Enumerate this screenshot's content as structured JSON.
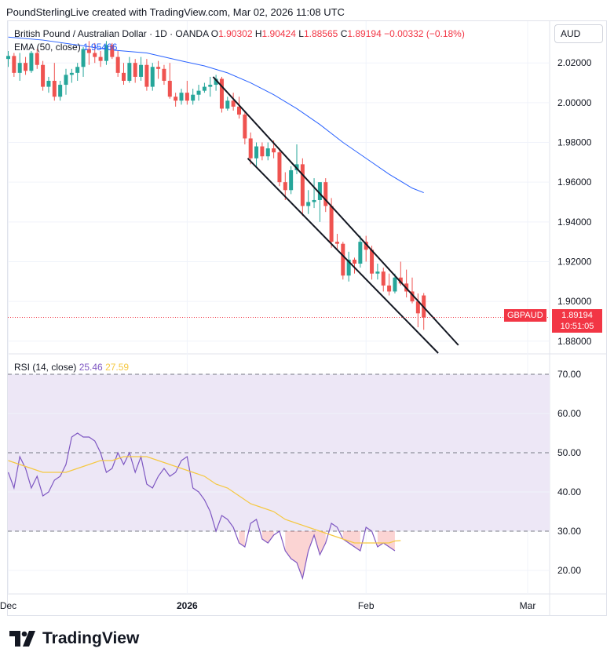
{
  "header": {
    "text": "PoundSterlingLive created with TradingView.com, Mar 02, 2026 11:08 UTC"
  },
  "symbol": {
    "name": "British Pound / Australian Dollar · 1D · OANDA",
    "o_label": "O",
    "o": "1.90302",
    "h_label": "H",
    "h": "1.90424",
    "l_label": "L",
    "l": "1.88565",
    "c_label": "C",
    "c": "1.89194",
    "change": "−0.00332 (−0.18%)"
  },
  "ema_legend": {
    "label": "EMA (50, close)",
    "value": "1.95466"
  },
  "rsi_legend": {
    "label": "RSI (14, close)",
    "rsi": "25.46",
    "ma": "27.59"
  },
  "currency_button": "AUD",
  "price_tag": {
    "symbol": "GBPAUD",
    "price": "1.89194",
    "countdown": "10:51:05"
  },
  "brand": "TradingView",
  "colors": {
    "up": "#26a69a",
    "down": "#ef5350",
    "ema": "#2962ff",
    "rsi": "#7e57c2",
    "rsi_ma": "#f5c842",
    "band": "#ede7f6"
  },
  "chart_data": [
    {
      "type": "candlestick",
      "title": "British Pound / Australian Dollar · 1D · OANDA",
      "ylim": [
        1.874,
        2.041
      ],
      "y_ticks": [
        2.02,
        2.0,
        1.98,
        1.96,
        1.94,
        1.92,
        1.9,
        1.88
      ],
      "y_tick_labels": [
        "2.02000",
        "2.00000",
        "1.98000",
        "1.96000",
        "1.94000",
        "1.92000",
        "1.90000",
        "1.88000"
      ],
      "x_ticks": [
        {
          "label": "Dec",
          "x": 0
        },
        {
          "label": "2026",
          "x": 31
        },
        {
          "label": "Feb",
          "x": 62
        },
        {
          "label": "Mar",
          "x": 90
        }
      ],
      "x_range": [
        0,
        115
      ],
      "candles": [
        {
          "x": 0,
          "o": 2.022,
          "h": 2.026,
          "l": 2.018,
          "c": 2.0235
        },
        {
          "x": 1,
          "o": 2.0235,
          "h": 2.025,
          "l": 2.013,
          "c": 2.015
        },
        {
          "x": 2,
          "o": 2.015,
          "h": 2.025,
          "l": 2.011,
          "c": 2.02
        },
        {
          "x": 3,
          "o": 2.02,
          "h": 2.023,
          "l": 2.014,
          "c": 2.016
        },
        {
          "x": 4,
          "o": 2.016,
          "h": 2.026,
          "l": 2.015,
          "c": 2.025
        },
        {
          "x": 5,
          "o": 2.025,
          "h": 2.027,
          "l": 2.017,
          "c": 2.019
        },
        {
          "x": 6,
          "o": 2.019,
          "h": 2.021,
          "l": 2.006,
          "c": 2.008
        },
        {
          "x": 7,
          "o": 2.008,
          "h": 2.013,
          "l": 2.005,
          "c": 2.011
        },
        {
          "x": 8,
          "o": 2.011,
          "h": 2.02,
          "l": 2.001,
          "c": 2.003
        },
        {
          "x": 9,
          "o": 2.003,
          "h": 2.011,
          "l": 2.001,
          "c": 2.009
        },
        {
          "x": 10,
          "o": 2.009,
          "h": 2.017,
          "l": 2.004,
          "c": 2.014
        },
        {
          "x": 11,
          "o": 2.014,
          "h": 2.017,
          "l": 2.01,
          "c": 2.015
        },
        {
          "x": 12,
          "o": 2.015,
          "h": 2.02,
          "l": 2.011,
          "c": 2.018
        },
        {
          "x": 13,
          "o": 2.018,
          "h": 2.028,
          "l": 2.013,
          "c": 2.027
        },
        {
          "x": 14,
          "o": 2.027,
          "h": 2.031,
          "l": 2.019,
          "c": 2.025
        },
        {
          "x": 15,
          "o": 2.025,
          "h": 2.03,
          "l": 2.02,
          "c": 2.023
        },
        {
          "x": 16,
          "o": 2.023,
          "h": 2.026,
          "l": 2.018,
          "c": 2.021
        },
        {
          "x": 17,
          "o": 2.021,
          "h": 2.031,
          "l": 2.019,
          "c": 2.029
        },
        {
          "x": 18,
          "o": 2.029,
          "h": 2.03,
          "l": 2.022,
          "c": 2.023
        },
        {
          "x": 19,
          "o": 2.023,
          "h": 2.026,
          "l": 2.013,
          "c": 2.015
        },
        {
          "x": 20,
          "o": 2.015,
          "h": 2.02,
          "l": 2.009,
          "c": 2.011
        },
        {
          "x": 21,
          "o": 2.011,
          "h": 2.023,
          "l": 2.01,
          "c": 2.02
        },
        {
          "x": 22,
          "o": 2.02,
          "h": 2.022,
          "l": 2.01,
          "c": 2.013
        },
        {
          "x": 23,
          "o": 2.013,
          "h": 2.023,
          "l": 2.011,
          "c": 2.019
        },
        {
          "x": 24,
          "o": 2.019,
          "h": 2.022,
          "l": 2.006,
          "c": 2.008
        },
        {
          "x": 25,
          "o": 2.008,
          "h": 2.02,
          "l": 2.006,
          "c": 2.018
        },
        {
          "x": 26,
          "o": 2.018,
          "h": 2.021,
          "l": 2.012,
          "c": 2.017
        },
        {
          "x": 27,
          "o": 2.017,
          "h": 2.019,
          "l": 2.009,
          "c": 2.011
        },
        {
          "x": 28,
          "o": 2.011,
          "h": 2.02,
          "l": 2.002,
          "c": 2.003
        },
        {
          "x": 29,
          "o": 2.003,
          "h": 2.005,
          "l": 1.998,
          "c": 2.001
        },
        {
          "x": 30,
          "o": 2.001,
          "h": 2.007,
          "l": 1.999,
          "c": 2.005
        },
        {
          "x": 31,
          "o": 2.005,
          "h": 2.011,
          "l": 1.999,
          "c": 2.001
        },
        {
          "x": 32,
          "o": 2.001,
          "h": 2.007,
          "l": 1.999,
          "c": 2.004
        },
        {
          "x": 33,
          "o": 2.004,
          "h": 2.009,
          "l": 2.001,
          "c": 2.006
        },
        {
          "x": 34,
          "o": 2.006,
          "h": 2.01,
          "l": 2.005,
          "c": 2.008
        },
        {
          "x": 35,
          "o": 2.008,
          "h": 2.013,
          "l": 2.003,
          "c": 2.009
        },
        {
          "x": 36,
          "o": 2.009,
          "h": 2.014,
          "l": 2.006,
          "c": 2.012
        },
        {
          "x": 37,
          "o": 2.012,
          "h": 2.013,
          "l": 1.995,
          "c": 1.997
        },
        {
          "x": 38,
          "o": 1.997,
          "h": 2.003,
          "l": 1.996,
          "c": 2.001
        },
        {
          "x": 39,
          "o": 2.001,
          "h": 2.005,
          "l": 1.996,
          "c": 1.998
        },
        {
          "x": 40,
          "o": 1.998,
          "h": 2.003,
          "l": 1.992,
          "c": 1.994
        },
        {
          "x": 41,
          "o": 1.994,
          "h": 1.996,
          "l": 1.979,
          "c": 1.982
        },
        {
          "x": 42,
          "o": 1.982,
          "h": 1.985,
          "l": 1.969,
          "c": 1.972
        },
        {
          "x": 43,
          "o": 1.972,
          "h": 1.98,
          "l": 1.968,
          "c": 1.978
        },
        {
          "x": 44,
          "o": 1.978,
          "h": 1.98,
          "l": 1.971,
          "c": 1.973
        },
        {
          "x": 45,
          "o": 1.973,
          "h": 1.98,
          "l": 1.971,
          "c": 1.977
        },
        {
          "x": 46,
          "o": 1.977,
          "h": 1.981,
          "l": 1.972,
          "c": 1.975
        },
        {
          "x": 47,
          "o": 1.975,
          "h": 1.977,
          "l": 1.958,
          "c": 1.96
        },
        {
          "x": 48,
          "o": 1.96,
          "h": 1.965,
          "l": 1.951,
          "c": 1.956
        },
        {
          "x": 49,
          "o": 1.956,
          "h": 1.968,
          "l": 1.954,
          "c": 1.966
        },
        {
          "x": 50,
          "o": 1.966,
          "h": 1.979,
          "l": 1.964,
          "c": 1.969
        },
        {
          "x": 51,
          "o": 1.969,
          "h": 1.972,
          "l": 1.943,
          "c": 1.948
        },
        {
          "x": 52,
          "o": 1.948,
          "h": 1.956,
          "l": 1.944,
          "c": 1.95
        },
        {
          "x": 53,
          "o": 1.95,
          "h": 1.962,
          "l": 1.947,
          "c": 1.951
        },
        {
          "x": 54,
          "o": 1.951,
          "h": 1.96,
          "l": 1.94,
          "c": 1.96
        },
        {
          "x": 55,
          "o": 1.96,
          "h": 1.962,
          "l": 1.945,
          "c": 1.948
        },
        {
          "x": 56,
          "o": 1.948,
          "h": 1.952,
          "l": 1.927,
          "c": 1.93
        },
        {
          "x": 57,
          "o": 1.93,
          "h": 1.934,
          "l": 1.926,
          "c": 1.929
        },
        {
          "x": 58,
          "o": 1.929,
          "h": 1.93,
          "l": 1.911,
          "c": 1.913
        },
        {
          "x": 59,
          "o": 1.913,
          "h": 1.925,
          "l": 1.91,
          "c": 1.921
        },
        {
          "x": 60,
          "o": 1.921,
          "h": 1.922,
          "l": 1.914,
          "c": 1.919
        },
        {
          "x": 61,
          "o": 1.919,
          "h": 1.933,
          "l": 1.917,
          "c": 1.93
        },
        {
          "x": 62,
          "o": 1.93,
          "h": 1.933,
          "l": 1.92,
          "c": 1.926
        },
        {
          "x": 63,
          "o": 1.926,
          "h": 1.928,
          "l": 1.911,
          "c": 1.914
        },
        {
          "x": 64,
          "o": 1.914,
          "h": 1.919,
          "l": 1.911,
          "c": 1.915
        },
        {
          "x": 65,
          "o": 1.915,
          "h": 1.917,
          "l": 1.905,
          "c": 1.908
        },
        {
          "x": 66,
          "o": 1.908,
          "h": 1.914,
          "l": 1.903,
          "c": 1.905
        },
        {
          "x": 67,
          "o": 1.905,
          "h": 1.914,
          "l": 1.904,
          "c": 1.912
        },
        {
          "x": 68,
          "o": 1.912,
          "h": 1.92,
          "l": 1.908,
          "c": 1.909
        },
        {
          "x": 69,
          "o": 1.909,
          "h": 1.916,
          "l": 1.902,
          "c": 1.905
        },
        {
          "x": 70,
          "o": 1.905,
          "h": 1.912,
          "l": 1.899,
          "c": 1.9
        },
        {
          "x": 71,
          "o": 1.9,
          "h": 1.904,
          "l": 1.887,
          "c": 1.894
        },
        {
          "x": 72,
          "o": 1.903,
          "h": 1.9042,
          "l": 1.8857,
          "c": 1.8919
        }
      ],
      "ema_50": [
        {
          "x": 0,
          "y": 2.033
        },
        {
          "x": 6,
          "y": 2.0315
        },
        {
          "x": 12,
          "y": 2.029
        },
        {
          "x": 18,
          "y": 2.0265
        },
        {
          "x": 24,
          "y": 2.025
        },
        {
          "x": 30,
          "y": 2.021
        },
        {
          "x": 34,
          "y": 2.0185
        },
        {
          "x": 38,
          "y": 2.015
        },
        {
          "x": 42,
          "y": 2.01
        },
        {
          "x": 46,
          "y": 2.004
        },
        {
          "x": 50,
          "y": 1.997
        },
        {
          "x": 54,
          "y": 1.989
        },
        {
          "x": 58,
          "y": 1.98
        },
        {
          "x": 62,
          "y": 1.972
        },
        {
          "x": 66,
          "y": 1.964
        },
        {
          "x": 70,
          "y": 1.957
        },
        {
          "x": 72,
          "y": 1.9547
        }
      ],
      "channel": [
        {
          "name": "upper",
          "from": {
            "x": 35.5,
            "y": 2.013
          },
          "to": {
            "x": 78,
            "y": 1.878
          }
        },
        {
          "name": "lower",
          "from": {
            "x": 41.5,
            "y": 1.972
          },
          "to": {
            "x": 74.5,
            "y": 1.8738
          }
        }
      ],
      "last_price": 1.89194
    },
    {
      "type": "line",
      "title": "RSI (14, close)",
      "ylim": [
        14,
        75
      ],
      "y_ticks": [
        70,
        60,
        50,
        40,
        30,
        20
      ],
      "y_tick_labels": [
        "70.00",
        "60.00",
        "50.00",
        "40.00",
        "30.00",
        "20.00"
      ],
      "band": [
        30,
        70
      ],
      "levels": [
        70,
        50,
        30
      ],
      "series": [
        {
          "name": "RSI",
          "values": [
            45,
            41,
            49,
            46,
            41,
            44,
            39,
            40,
            43,
            44,
            47,
            54,
            55,
            54,
            54,
            53,
            50,
            45,
            46,
            50,
            47,
            50,
            45,
            49,
            42,
            41,
            44,
            46,
            44,
            45,
            48,
            49,
            41,
            40,
            38,
            35,
            30,
            34,
            33,
            31,
            27,
            26,
            32,
            33,
            28,
            27,
            29,
            30,
            25,
            23,
            22,
            18,
            25,
            29,
            24,
            27,
            32,
            31,
            28,
            27,
            26,
            25,
            31,
            30,
            26,
            27,
            26,
            25
          ],
          "x": [
            0,
            1,
            2,
            3,
            4,
            5,
            6,
            7,
            8,
            9,
            10,
            11,
            12,
            13,
            14,
            15,
            16,
            17,
            18,
            19,
            20,
            21,
            22,
            23,
            24,
            25,
            26,
            27,
            28,
            29,
            30,
            31,
            32,
            33,
            34,
            35,
            36,
            37,
            38,
            39,
            40,
            41,
            42,
            43,
            44,
            45,
            46,
            47,
            48,
            49,
            50,
            51,
            52,
            53,
            54,
            55,
            56,
            57,
            58,
            59,
            60,
            61,
            62,
            63,
            64,
            65,
            66,
            67
          ]
        },
        {
          "name": "RSI-based MA",
          "values": [
            48,
            47,
            46,
            45,
            45,
            45,
            46,
            47,
            48,
            48,
            49,
            49,
            49,
            48,
            47,
            46,
            45,
            44,
            42,
            41,
            39,
            37,
            36,
            35,
            33,
            32,
            31,
            30,
            29,
            28,
            27,
            27,
            27,
            27,
            27.5,
            27.6
          ],
          "x": [
            0,
            2,
            4,
            6,
            8,
            10,
            12,
            14,
            16,
            18,
            20,
            22,
            24,
            26,
            28,
            30,
            32,
            34,
            36,
            38,
            40,
            42,
            44,
            46,
            48,
            50,
            52,
            54,
            56,
            58,
            60,
            62,
            64,
            66,
            67,
            68
          ]
        }
      ]
    }
  ]
}
